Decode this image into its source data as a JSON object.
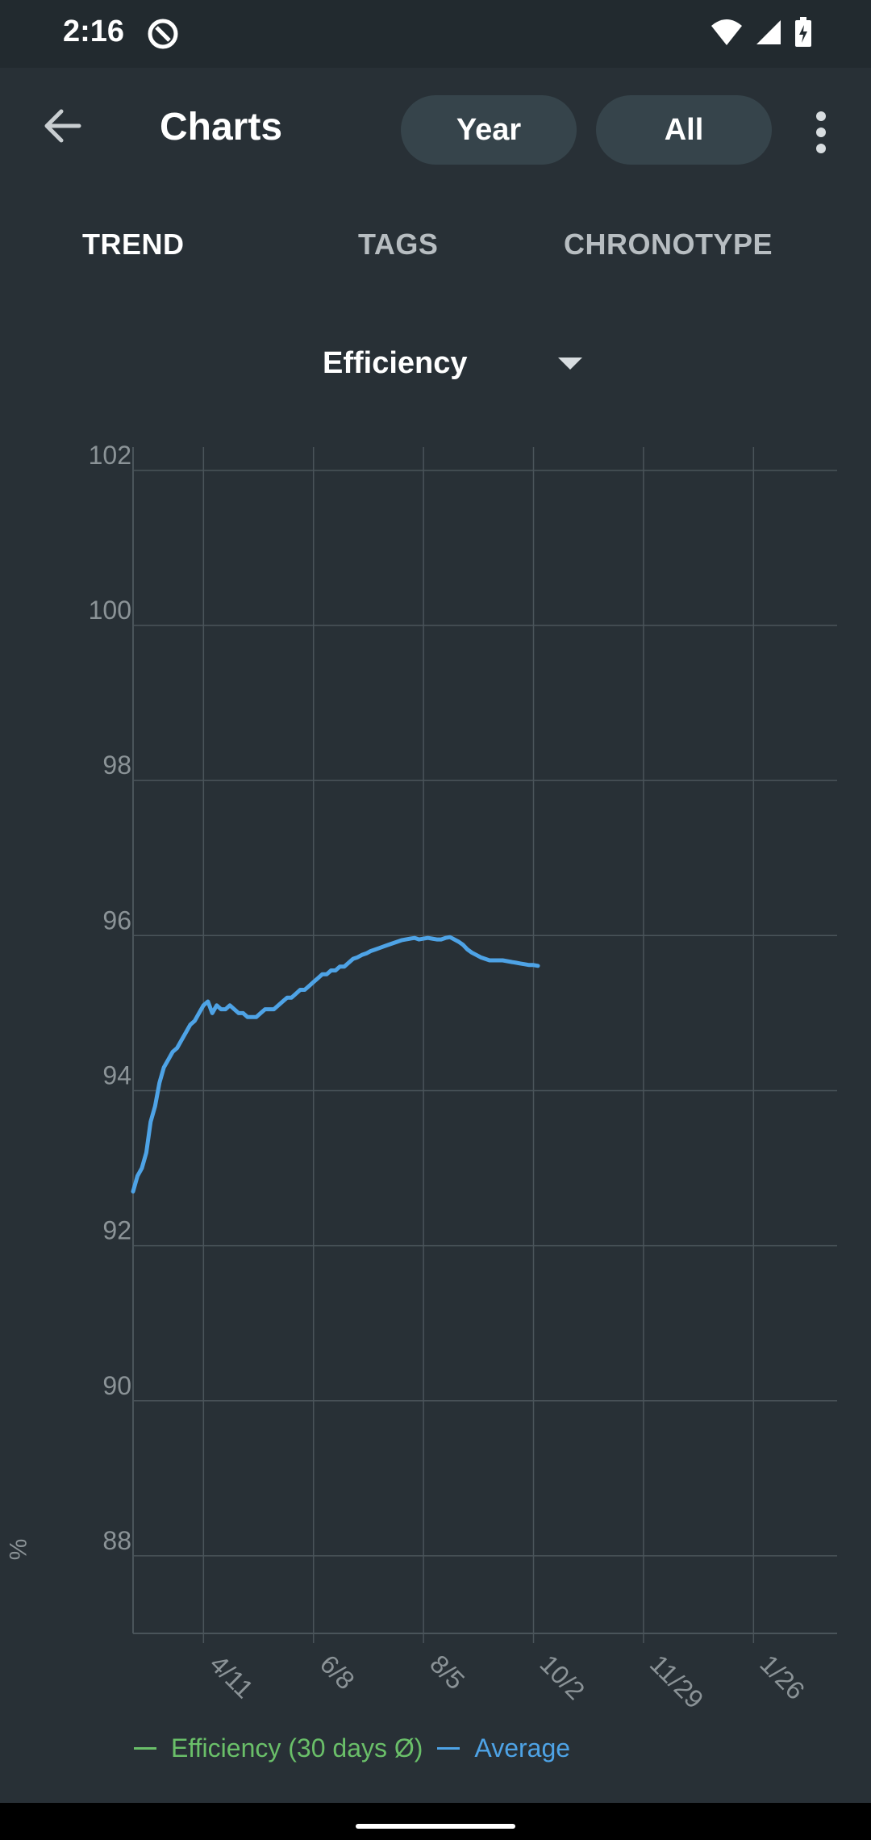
{
  "status_bar": {
    "time": "2:16",
    "icons": [
      "at-sign-icon",
      "wifi-icon",
      "signal-icon",
      "battery-charging-icon"
    ]
  },
  "app_bar": {
    "title": "Charts",
    "back_icon": "arrow-back-icon",
    "more_icon": "more-vertical-icon",
    "filters": [
      {
        "label": "Year"
      },
      {
        "label": "All"
      }
    ]
  },
  "tabs": [
    {
      "label": "TREND",
      "selected": true
    },
    {
      "label": "TAGS",
      "selected": false
    },
    {
      "label": "CHRONOTYPE",
      "selected": false
    }
  ],
  "metric_select": {
    "value": "Efficiency"
  },
  "colors": {
    "background": "#283036",
    "average_line": "#4ea3e6",
    "efficiency_legend": "#6abf69",
    "grid": "#4a545a"
  },
  "chart_data": {
    "type": "line",
    "ylabel": "%",
    "ylim": [
      87,
      102.3
    ],
    "yticks": [
      102,
      100,
      98,
      96,
      94,
      92,
      90,
      88
    ],
    "xlim": [
      0,
      320
    ],
    "xticks": [
      {
        "label": "4/11",
        "x": 32
      },
      {
        "label": "6/8",
        "x": 82
      },
      {
        "label": "8/5",
        "x": 132
      },
      {
        "label": "10/2",
        "x": 182
      },
      {
        "label": "11/29",
        "x": 232
      },
      {
        "label": "1/26",
        "x": 282
      }
    ],
    "grid": true,
    "legend_position": "bottom",
    "legend": [
      {
        "label": "Efficiency (30 days Ø)",
        "color": "#6abf69"
      },
      {
        "label": "Average",
        "color": "#4ea3e6"
      }
    ],
    "series": [
      {
        "name": "Average",
        "color": "#4ea3e6",
        "points": [
          [
            0,
            92.7
          ],
          [
            2,
            92.9
          ],
          [
            4,
            93.0
          ],
          [
            6,
            93.2
          ],
          [
            8,
            93.6
          ],
          [
            10,
            93.8
          ],
          [
            12,
            94.1
          ],
          [
            14,
            94.3
          ],
          [
            16,
            94.4
          ],
          [
            18,
            94.5
          ],
          [
            20,
            94.55
          ],
          [
            22,
            94.65
          ],
          [
            24,
            94.75
          ],
          [
            26,
            94.85
          ],
          [
            28,
            94.9
          ],
          [
            30,
            95.0
          ],
          [
            32,
            95.1
          ],
          [
            34,
            95.15
          ],
          [
            36,
            95.0
          ],
          [
            38,
            95.1
          ],
          [
            40,
            95.05
          ],
          [
            42,
            95.05
          ],
          [
            44,
            95.1
          ],
          [
            46,
            95.05
          ],
          [
            48,
            95.0
          ],
          [
            50,
            95.0
          ],
          [
            52,
            94.95
          ],
          [
            54,
            94.95
          ],
          [
            56,
            94.95
          ],
          [
            58,
            95.0
          ],
          [
            60,
            95.05
          ],
          [
            62,
            95.05
          ],
          [
            64,
            95.05
          ],
          [
            66,
            95.1
          ],
          [
            68,
            95.15
          ],
          [
            70,
            95.2
          ],
          [
            72,
            95.2
          ],
          [
            74,
            95.25
          ],
          [
            76,
            95.3
          ],
          [
            78,
            95.3
          ],
          [
            80,
            95.35
          ],
          [
            82,
            95.4
          ],
          [
            84,
            95.45
          ],
          [
            86,
            95.5
          ],
          [
            88,
            95.5
          ],
          [
            90,
            95.55
          ],
          [
            92,
            95.55
          ],
          [
            94,
            95.6
          ],
          [
            96,
            95.6
          ],
          [
            98,
            95.65
          ],
          [
            100,
            95.7
          ],
          [
            102,
            95.72
          ],
          [
            104,
            95.75
          ],
          [
            106,
            95.77
          ],
          [
            108,
            95.8
          ],
          [
            110,
            95.82
          ],
          [
            112,
            95.84
          ],
          [
            114,
            95.86
          ],
          [
            116,
            95.88
          ],
          [
            118,
            95.9
          ],
          [
            120,
            95.92
          ],
          [
            122,
            95.94
          ],
          [
            124,
            95.95
          ],
          [
            126,
            95.96
          ],
          [
            128,
            95.97
          ],
          [
            130,
            95.95
          ],
          [
            132,
            95.96
          ],
          [
            134,
            95.97
          ],
          [
            136,
            95.96
          ],
          [
            138,
            95.95
          ],
          [
            140,
            95.95
          ],
          [
            142,
            95.97
          ],
          [
            144,
            95.98
          ],
          [
            146,
            95.95
          ],
          [
            148,
            95.92
          ],
          [
            150,
            95.88
          ],
          [
            152,
            95.82
          ],
          [
            154,
            95.78
          ],
          [
            156,
            95.75
          ],
          [
            158,
            95.72
          ],
          [
            160,
            95.7
          ],
          [
            162,
            95.68
          ],
          [
            164,
            95.68
          ],
          [
            166,
            95.68
          ],
          [
            168,
            95.68
          ],
          [
            170,
            95.67
          ],
          [
            172,
            95.66
          ],
          [
            174,
            95.65
          ],
          [
            176,
            95.64
          ],
          [
            178,
            95.63
          ],
          [
            180,
            95.62
          ],
          [
            182,
            95.62
          ],
          [
            184,
            95.61
          ]
        ]
      }
    ]
  }
}
